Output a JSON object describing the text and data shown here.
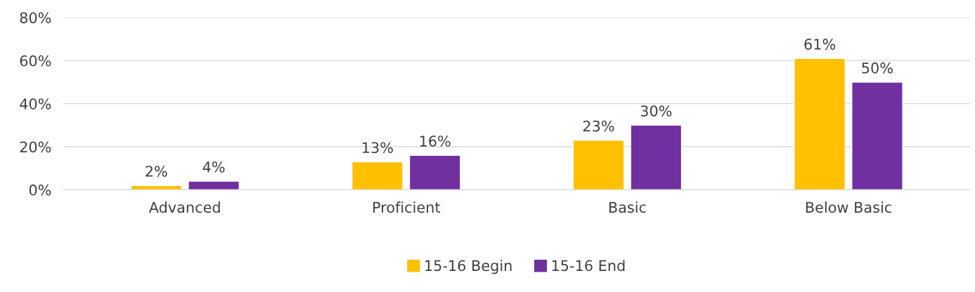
{
  "chart_data": {
    "type": "bar",
    "categories": [
      "Advanced",
      "Proficient",
      "Basic",
      "Below Basic"
    ],
    "series": [
      {
        "name": "15-16 Begin",
        "color": "#ffc000",
        "values": [
          2,
          13,
          23,
          61
        ],
        "value_labels": [
          "2%",
          "13%",
          "23%",
          "61%"
        ]
      },
      {
        "name": "15-16 End",
        "color": "#7030a0",
        "values": [
          4,
          16,
          30,
          50
        ],
        "value_labels": [
          "4%",
          "16%",
          "30%",
          "50%"
        ]
      }
    ],
    "ylim": [
      0,
      80
    ],
    "yticks": [
      {
        "value": 0,
        "label": "0%"
      },
      {
        "value": 20,
        "label": "20%"
      },
      {
        "value": 40,
        "label": "40%"
      },
      {
        "value": 60,
        "label": "60%"
      },
      {
        "value": 80,
        "label": "80%"
      }
    ],
    "grid": "y",
    "legend": "bottom"
  }
}
